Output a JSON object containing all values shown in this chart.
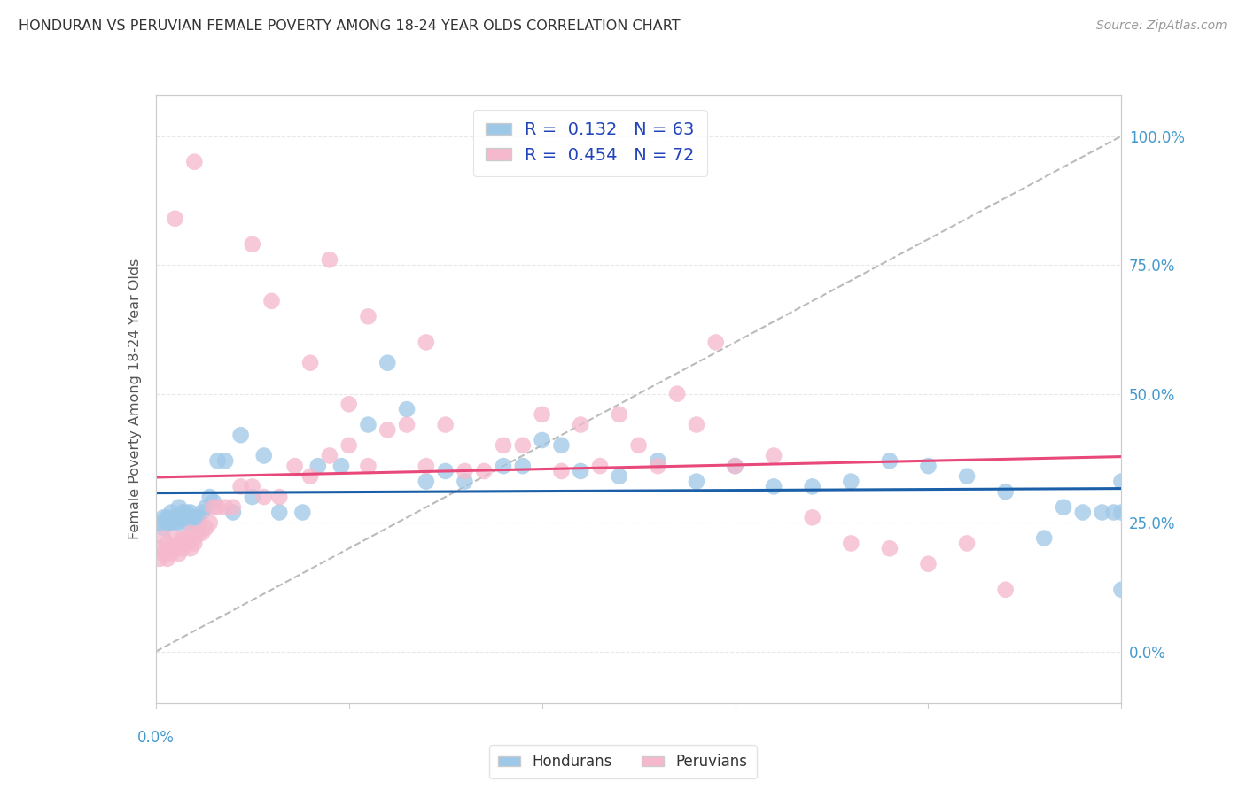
{
  "title": "HONDURAN VS PERUVIAN FEMALE POVERTY AMONG 18-24 YEAR OLDS CORRELATION CHART",
  "source": "Source: ZipAtlas.com",
  "ylabel": "Female Poverty Among 18-24 Year Olds",
  "ytick_labels": [
    "0.0%",
    "25.0%",
    "50.0%",
    "75.0%",
    "100.0%"
  ],
  "ytick_values": [
    0.0,
    0.25,
    0.5,
    0.75,
    1.0
  ],
  "honduran_color": "#9ec8e8",
  "peruvian_color": "#f5b8cc",
  "honduran_line_color": "#1a5fa8",
  "peruvian_line_color": "#e8487a",
  "ref_line_color": "#bbbbbb",
  "background_color": "#ffffff",
  "title_color": "#333333",
  "axis_color": "#cccccc",
  "grid_color": "#e8e8e8",
  "xlabel_color": "#4499cc",
  "ylabel_color": "#555555",
  "ytick_color": "#4499cc",
  "hondurans_label": "Hondurans",
  "peruvians_label": "Peruvians",
  "R_hondurans": 0.132,
  "N_hondurans": 63,
  "R_peruvians": 0.454,
  "N_peruvians": 72,
  "xmin": 0.0,
  "xmax": 0.25,
  "ymin": -0.1,
  "ymax": 1.08,
  "hondurans_x": [
    0.001,
    0.002,
    0.002,
    0.003,
    0.003,
    0.004,
    0.004,
    0.005,
    0.005,
    0.006,
    0.006,
    0.007,
    0.007,
    0.008,
    0.008,
    0.009,
    0.01,
    0.01,
    0.011,
    0.012,
    0.013,
    0.014,
    0.015,
    0.016,
    0.018,
    0.02,
    0.022,
    0.025,
    0.028,
    0.032,
    0.038,
    0.042,
    0.048,
    0.055,
    0.06,
    0.065,
    0.07,
    0.075,
    0.08,
    0.09,
    0.095,
    0.1,
    0.105,
    0.11,
    0.12,
    0.13,
    0.14,
    0.15,
    0.16,
    0.17,
    0.18,
    0.19,
    0.2,
    0.21,
    0.22,
    0.23,
    0.235,
    0.24,
    0.245,
    0.248,
    0.25,
    0.25,
    0.25
  ],
  "hondurans_y": [
    0.25,
    0.26,
    0.24,
    0.26,
    0.25,
    0.25,
    0.27,
    0.26,
    0.25,
    0.28,
    0.25,
    0.27,
    0.26,
    0.27,
    0.25,
    0.27,
    0.25,
    0.26,
    0.26,
    0.27,
    0.28,
    0.3,
    0.29,
    0.37,
    0.37,
    0.27,
    0.42,
    0.3,
    0.38,
    0.27,
    0.27,
    0.36,
    0.36,
    0.44,
    0.56,
    0.47,
    0.33,
    0.35,
    0.33,
    0.36,
    0.36,
    0.41,
    0.4,
    0.35,
    0.34,
    0.37,
    0.33,
    0.36,
    0.32,
    0.32,
    0.33,
    0.37,
    0.36,
    0.34,
    0.31,
    0.22,
    0.28,
    0.27,
    0.27,
    0.27,
    0.27,
    0.33,
    0.12
  ],
  "peruvians_x": [
    0.001,
    0.001,
    0.002,
    0.002,
    0.003,
    0.003,
    0.004,
    0.004,
    0.005,
    0.005,
    0.006,
    0.006,
    0.007,
    0.007,
    0.008,
    0.008,
    0.009,
    0.009,
    0.01,
    0.01,
    0.011,
    0.012,
    0.013,
    0.014,
    0.015,
    0.016,
    0.018,
    0.02,
    0.022,
    0.025,
    0.028,
    0.032,
    0.036,
    0.04,
    0.045,
    0.05,
    0.055,
    0.06,
    0.065,
    0.07,
    0.075,
    0.08,
    0.085,
    0.09,
    0.095,
    0.1,
    0.105,
    0.11,
    0.115,
    0.12,
    0.125,
    0.13,
    0.135,
    0.14,
    0.145,
    0.15,
    0.16,
    0.17,
    0.18,
    0.19,
    0.2,
    0.21,
    0.22,
    0.025,
    0.03,
    0.04,
    0.045,
    0.05,
    0.055,
    0.07,
    0.005,
    0.01
  ],
  "peruvians_y": [
    0.2,
    0.18,
    0.22,
    0.19,
    0.21,
    0.18,
    0.2,
    0.19,
    0.22,
    0.2,
    0.21,
    0.19,
    0.22,
    0.2,
    0.22,
    0.21,
    0.23,
    0.2,
    0.22,
    0.21,
    0.23,
    0.23,
    0.24,
    0.25,
    0.28,
    0.28,
    0.28,
    0.28,
    0.32,
    0.32,
    0.3,
    0.3,
    0.36,
    0.34,
    0.38,
    0.4,
    0.36,
    0.43,
    0.44,
    0.36,
    0.44,
    0.35,
    0.35,
    0.4,
    0.4,
    0.46,
    0.35,
    0.44,
    0.36,
    0.46,
    0.4,
    0.36,
    0.5,
    0.44,
    0.6,
    0.36,
    0.38,
    0.26,
    0.21,
    0.2,
    0.17,
    0.21,
    0.12,
    0.79,
    0.68,
    0.56,
    0.76,
    0.48,
    0.65,
    0.6,
    0.84,
    0.95
  ]
}
